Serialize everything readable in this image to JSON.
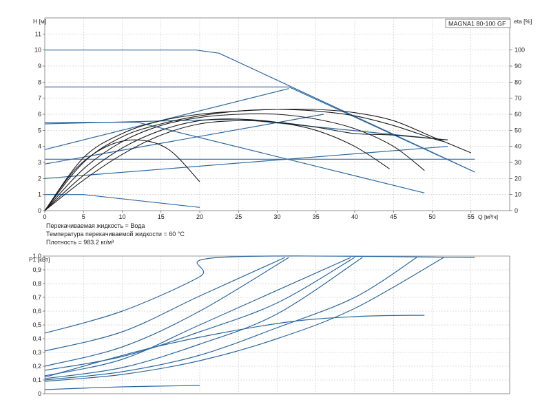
{
  "chart_data": [
    {
      "type": "line",
      "title": "MAGNA1 80-100 GF",
      "xlabel": "Q [м³/ч]",
      "ylabel": "H [м]",
      "y2label": "eta [%]",
      "xlim": [
        0,
        60
      ],
      "ylim": [
        0,
        12
      ],
      "y2lim": [
        0,
        120
      ],
      "x_ticks": [
        0,
        5,
        10,
        15,
        20,
        25,
        30,
        35,
        40,
        45,
        50,
        55
      ],
      "y_ticks": [
        0,
        1,
        2,
        3,
        4,
        5,
        6,
        7,
        8,
        9,
        10,
        11
      ],
      "y2_ticks": [
        0,
        10,
        20,
        30,
        40,
        50,
        60,
        70,
        80,
        90,
        100
      ],
      "grid": true,
      "notes": [
        "Перекачиваемая жидкость = Вода",
        "Температура перекачиваемой жидкости = 60 °C",
        "Плотность = 983.2 кг/м³"
      ],
      "series": [
        {
          "kind": "blue",
          "points": [
            [
              0,
              10
            ],
            [
              19.5,
              10
            ],
            [
              22.5,
              9.8
            ],
            [
              55.5,
              2.4
            ]
          ]
        },
        {
          "kind": "blue",
          "points": [
            [
              0,
              7.7
            ],
            [
              31.5,
              7.7
            ],
            [
              55.5,
              2.4
            ]
          ]
        },
        {
          "kind": "blue",
          "points": [
            [
              0,
              5.5
            ],
            [
              12,
              5.5
            ],
            [
              49,
              1.1
            ]
          ]
        },
        {
          "kind": "blue",
          "points": [
            [
              0,
              3.2
            ],
            [
              55.5,
              3.2
            ]
          ]
        },
        {
          "kind": "blue",
          "points": [
            [
              0,
              1.0
            ],
            [
              5,
              1.0
            ],
            [
              20,
              0.2
            ]
          ]
        },
        {
          "kind": "blue",
          "points": [
            [
              0,
              3.8
            ],
            [
              31.5,
              7.6
            ]
          ]
        },
        {
          "kind": "blue",
          "points": [
            [
              0,
              2.9
            ],
            [
              36,
              6.0
            ]
          ]
        },
        {
          "kind": "blue",
          "points": [
            [
              0,
              2.0
            ],
            [
              52,
              4.0
            ]
          ]
        },
        {
          "kind": "blue",
          "points": [
            [
              0,
              5.4
            ],
            [
              25,
              5.7
            ],
            [
              52,
              4.4
            ]
          ]
        },
        {
          "kind": "black",
          "points": [
            [
              0,
              0
            ],
            [
              5,
              3.3
            ],
            [
              10,
              4.8
            ],
            [
              15,
              5.6
            ],
            [
              20,
              6.0
            ],
            [
              25,
              6.2
            ],
            [
              30,
              6.3
            ],
            [
              35,
              6.3
            ],
            [
              40,
              6.1
            ],
            [
              45,
              5.6
            ],
            [
              50,
              4.6
            ],
            [
              55,
              3.6
            ]
          ]
        },
        {
          "kind": "black",
          "points": [
            [
              0,
              0
            ],
            [
              5,
              3.0
            ],
            [
              10,
              4.6
            ],
            [
              15,
              5.4
            ],
            [
              20,
              5.9
            ],
            [
              25,
              6.2
            ],
            [
              30,
              6.3
            ],
            [
              35,
              6.2
            ],
            [
              40,
              5.9
            ],
            [
              45,
              5.3
            ],
            [
              50,
              4.5
            ],
            [
              51.5,
              4.3
            ]
          ]
        },
        {
          "kind": "black",
          "points": [
            [
              0,
              0
            ],
            [
              5,
              2.6
            ],
            [
              10,
              4.3
            ],
            [
              15,
              5.3
            ],
            [
              20,
              5.8
            ],
            [
              25,
              6.0
            ],
            [
              30,
              6.0
            ],
            [
              35,
              5.7
            ],
            [
              40,
              5.1
            ],
            [
              45,
              4.0
            ],
            [
              49,
              2.5
            ]
          ]
        },
        {
          "kind": "black",
          "points": [
            [
              0,
              0
            ],
            [
              5,
              2.2
            ],
            [
              10,
              3.9
            ],
            [
              15,
              5.0
            ],
            [
              20,
              5.6
            ],
            [
              25,
              5.7
            ],
            [
              30,
              5.5
            ],
            [
              35,
              5.0
            ],
            [
              40,
              4.0
            ],
            [
              44.5,
              2.6
            ]
          ]
        },
        {
          "kind": "black",
          "points": [
            [
              0,
              0
            ],
            [
              5,
              1.9
            ],
            [
              10,
              3.5
            ],
            [
              15,
              4.7
            ],
            [
              20,
              5.4
            ],
            [
              25,
              5.6
            ],
            [
              30,
              5.5
            ],
            [
              35,
              5.2
            ],
            [
              40,
              4.8
            ],
            [
              45,
              4.7
            ],
            [
              52,
              4.4
            ]
          ]
        },
        {
          "kind": "black",
          "points": [
            [
              0,
              0
            ],
            [
              4,
              2.6
            ],
            [
              8,
              4.0
            ],
            [
              12,
              4.4
            ],
            [
              16,
              3.8
            ],
            [
              20,
              1.8
            ]
          ]
        }
      ]
    },
    {
      "type": "line",
      "ylabel": "P1 [кВт]",
      "xlim": [
        0,
        60
      ],
      "ylim": [
        0,
        1.0
      ],
      "y_ticks": [
        0,
        0.1,
        0.2,
        0.3,
        0.4,
        0.5,
        0.6,
        0.7,
        0.8,
        0.9,
        1.0
      ],
      "y_tick_labels": [
        "0",
        "0,1",
        "0,2",
        "0,3",
        "0,4",
        "0,5",
        "0,6",
        "0,7",
        "0,8",
        "0,9",
        "1,0"
      ],
      "grid": true,
      "series": [
        {
          "kind": "blue",
          "points": [
            [
              0,
              0.44
            ],
            [
              10,
              0.6
            ],
            [
              20,
              0.85
            ],
            [
              22.5,
              0.99
            ],
            [
              55.5,
              0.99
            ]
          ]
        },
        {
          "kind": "blue",
          "points": [
            [
              0,
              0.31
            ],
            [
              10,
              0.45
            ],
            [
              20,
              0.71
            ],
            [
              31,
              0.99
            ]
          ]
        },
        {
          "kind": "blue",
          "points": [
            [
              0,
              0.2
            ],
            [
              10,
              0.34
            ],
            [
              20,
              0.6
            ],
            [
              31.5,
              0.99
            ]
          ]
        },
        {
          "kind": "blue",
          "points": [
            [
              0,
              0.13
            ],
            [
              10,
              0.25
            ],
            [
              20,
              0.5
            ],
            [
              39.5,
              0.99
            ]
          ]
        },
        {
          "kind": "blue",
          "points": [
            [
              0,
              0.17
            ],
            [
              10,
              0.27
            ],
            [
              20,
              0.45
            ],
            [
              30,
              0.66
            ],
            [
              40,
              0.99
            ]
          ]
        },
        {
          "kind": "blue",
          "points": [
            [
              0,
              0.11
            ],
            [
              10,
              0.19
            ],
            [
              20,
              0.36
            ],
            [
              30,
              0.58
            ],
            [
              41,
              0.99
            ]
          ]
        },
        {
          "kind": "blue",
          "points": [
            [
              0,
              0.1
            ],
            [
              10,
              0.16
            ],
            [
              20,
              0.28
            ],
            [
              30,
              0.48
            ],
            [
              40,
              0.7
            ],
            [
              48,
              0.99
            ]
          ]
        },
        {
          "kind": "blue",
          "points": [
            [
              0,
              0.09
            ],
            [
              10,
              0.14
            ],
            [
              20,
              0.24
            ],
            [
              30,
              0.4
            ],
            [
              40,
              0.62
            ],
            [
              51.5,
              0.99
            ]
          ]
        },
        {
          "kind": "blue",
          "points": [
            [
              0,
              0.12
            ],
            [
              15,
              0.35
            ],
            [
              30,
              0.51
            ],
            [
              40,
              0.56
            ],
            [
              49,
              0.57
            ]
          ]
        },
        {
          "kind": "blue",
          "points": [
            [
              0,
              0.03
            ],
            [
              10,
              0.05
            ],
            [
              20,
              0.06
            ]
          ]
        }
      ]
    }
  ]
}
